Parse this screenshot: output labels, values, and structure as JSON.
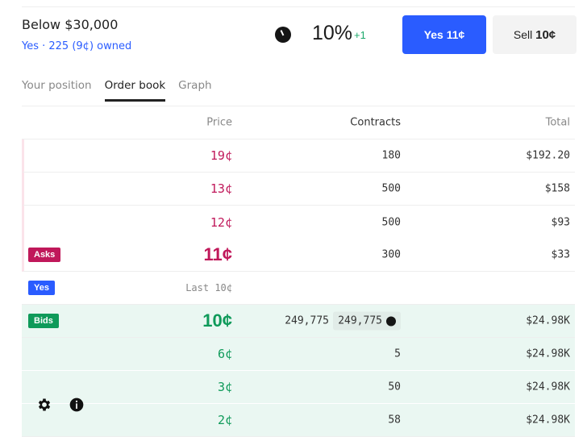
{
  "market": {
    "title": "Below $30,000",
    "owned": "Yes · 225 (9¢) owned",
    "chance": "10%",
    "change": "+1"
  },
  "actions": {
    "yes_label": "Yes",
    "yes_price": "11¢",
    "sell_label": "Sell",
    "sell_price": "10¢"
  },
  "tabs": [
    "Your position",
    "Order book",
    "Graph"
  ],
  "active_tab": "Order book",
  "columns": {
    "price": "Price",
    "contracts": "Contracts",
    "total": "Total"
  },
  "asks": [
    {
      "price": "19¢",
      "contracts": "180",
      "total": "$192.20"
    },
    {
      "price": "13¢",
      "contracts": "500",
      "total": "$158"
    },
    {
      "price": "12¢",
      "contracts": "500",
      "total": "$93"
    },
    {
      "price": "11¢",
      "contracts": "300",
      "total": "$33"
    }
  ],
  "asks_label": "Asks",
  "spread": {
    "badge": "Yes",
    "last": "Last 10¢"
  },
  "bids_label": "Bids",
  "bids": [
    {
      "price": "10¢",
      "contracts": "249,775",
      "my_contracts": "249,775",
      "total": "$24.98K"
    },
    {
      "price": "6¢",
      "contracts": "5",
      "total": "$24.98K"
    },
    {
      "price": "3¢",
      "contracts": "50",
      "total": "$24.98K"
    },
    {
      "price": "2¢",
      "contracts": "58",
      "total": "$24.98K"
    }
  ],
  "colors": {
    "accent": "#2a5cff",
    "ask": "#c0185a",
    "bid": "#0f9a5a",
    "bid_bg": "#eaf7f2"
  },
  "icons": {
    "settings": "gear-icon",
    "info": "info-icon",
    "clock": "clock-icon"
  }
}
